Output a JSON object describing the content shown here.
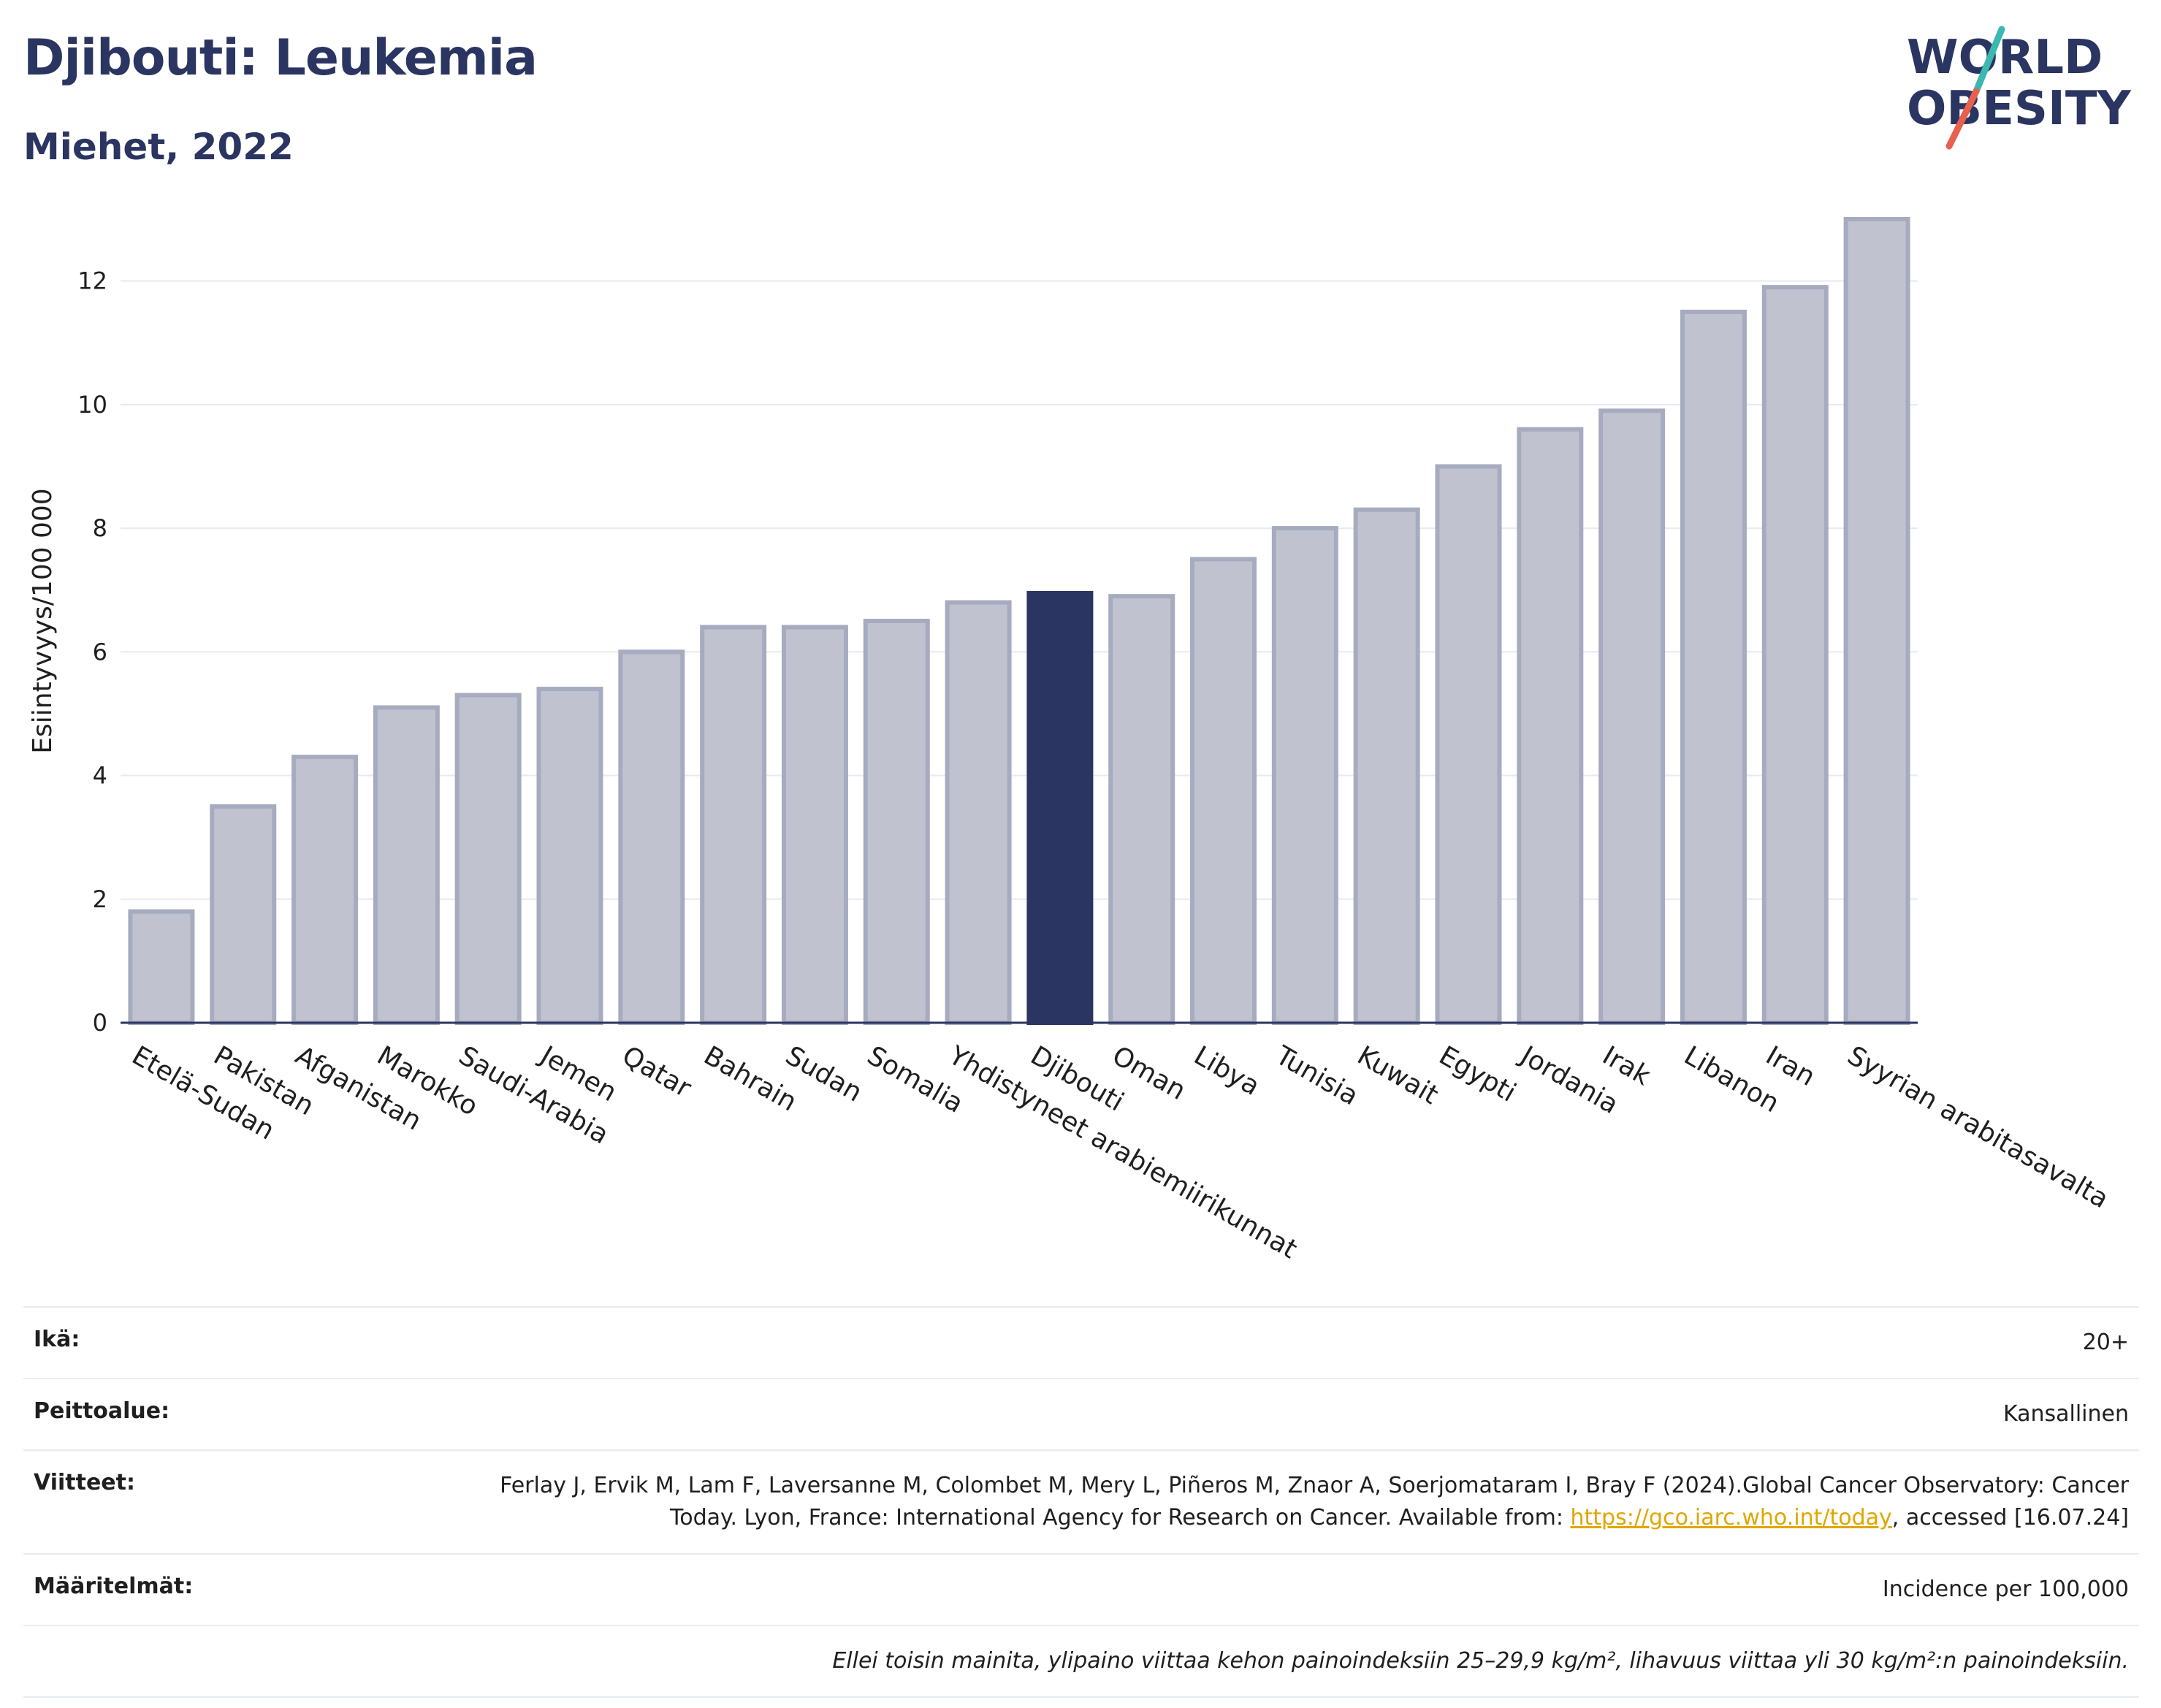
{
  "header": {
    "title": "Djibouti: Leukemia",
    "subtitle": "Miehet, 2022"
  },
  "logo": {
    "line1": "WORLD",
    "line2": "OBESITY",
    "accent_colors": [
      "#3bb8b0",
      "#e8604f"
    ],
    "text_color": "#2b3561"
  },
  "chart_data": {
    "type": "bar",
    "ylabel": "Esiintyvyys/100 000",
    "ylim": [
      0,
      13
    ],
    "yticks": [
      0,
      2,
      4,
      6,
      8,
      10,
      12
    ],
    "grid": true,
    "highlight": "Djibouti",
    "colors": {
      "bar": "#c0c3cf",
      "bar_stroke": "#a7abbf",
      "highlight": "#2b3561",
      "axis": "#2b3561",
      "grid": "#e8eaf1"
    },
    "categories": [
      "Etelä-Sudan",
      "Pakistan",
      "Afganistan",
      "Marokko",
      "Saudi-Arabia",
      "Jemen",
      "Qatar",
      "Bahrain",
      "Sudan",
      "Somalia",
      "Yhdistyneet arabiemiirikunnat",
      "Djibouti",
      "Oman",
      "Libya",
      "Tunisia",
      "Kuwait",
      "Egypti",
      "Jordania",
      "Irak",
      "Libanon",
      "Iran",
      "Syyrian arabitasavalta"
    ],
    "values": [
      1.8,
      3.5,
      4.3,
      5.1,
      5.3,
      5.4,
      6.0,
      6.4,
      6.4,
      6.5,
      6.8,
      6.95,
      6.9,
      7.5,
      8.0,
      8.3,
      9.0,
      9.6,
      9.9,
      11.5,
      11.9,
      13.0
    ]
  },
  "info": {
    "rows": [
      {
        "label": "Ikä:",
        "value": "20+"
      },
      {
        "label": "Peittoalue:",
        "value": "Kansallinen"
      },
      {
        "label": "Viitteet:",
        "value": "Ferlay J, Ervik M, Lam F, Laversanne M, Colombet M, Mery L, Piñeros M, Znaor A, Soerjomataram I, Bray F (2024).Global Cancer Observatory: Cancer Today. Lyon, France: International Agency for Research on Cancer. Available from: ",
        "link": "https://gco.iarc.who.int/today",
        "suffix": ", accessed [16.07.24]"
      },
      {
        "label": "Määritelmät:",
        "value": "Incidence per 100,000"
      }
    ],
    "note": "Ellei toisin mainita, ylipaino viittaa kehon painoindeksiin 25–29,9 kg/m², lihavuus viittaa yli 30 kg/m²:n painoindeksiin."
  }
}
